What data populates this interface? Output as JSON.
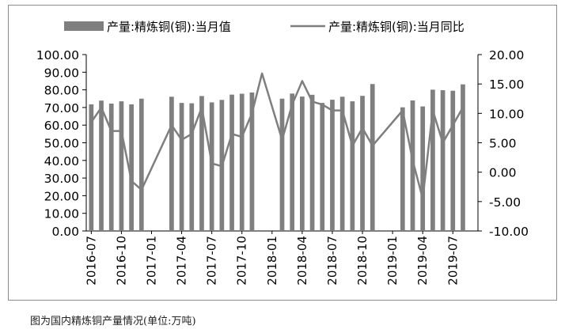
{
  "caption": "图为国内精炼铜产量情况(单位:万吨)",
  "chart_data": {
    "type": "bar+line",
    "title": "",
    "legend_position": "top",
    "colors": {
      "bar": "#7f7f7f",
      "line": "#7f7f7f",
      "axis": "#000000"
    },
    "x_tick_labels": [
      "2016-07",
      "2016-10",
      "2017-01",
      "2017-04",
      "2017-07",
      "2017-10",
      "2018-01",
      "2018-04",
      "2018-07",
      "2018-10",
      "2019-01",
      "2019-04",
      "2019-07"
    ],
    "categories": [
      "2016-07",
      "2016-08",
      "2016-09",
      "2016-10",
      "2016-11",
      "2016-12",
      "2017-01",
      "2017-02",
      "2017-03",
      "2017-04",
      "2017-05",
      "2017-06",
      "2017-07",
      "2017-08",
      "2017-09",
      "2017-10",
      "2017-11",
      "2017-12",
      "2018-01",
      "2018-02",
      "2018-03",
      "2018-04",
      "2018-05",
      "2018-06",
      "2018-07",
      "2018-08",
      "2018-09",
      "2018-10",
      "2018-11",
      "2018-12",
      "2019-01",
      "2019-02",
      "2019-03",
      "2019-04",
      "2019-05",
      "2019-06",
      "2019-07",
      "2019-08",
      "2019-09"
    ],
    "y_left": {
      "min": 0,
      "max": 100,
      "step": 10,
      "ticks": [
        "0.00",
        "10.00",
        "20.00",
        "30.00",
        "40.00",
        "50.00",
        "60.00",
        "70.00",
        "80.00",
        "90.00",
        "100.00"
      ]
    },
    "y_right": {
      "min": -10,
      "max": 20,
      "step": 5,
      "ticks": [
        "-10.00",
        "-5.00",
        "0.00",
        "5.00",
        "10.00",
        "15.00",
        "20.00"
      ]
    },
    "series": [
      {
        "name": "产量:精炼铜(铜):当月值",
        "type": "bar",
        "axis": "left",
        "values": [
          71.8,
          73.9,
          72.2,
          73.5,
          71.8,
          75.0,
          null,
          null,
          76.1,
          72.6,
          72.4,
          76.5,
          72.9,
          74.3,
          77.3,
          77.8,
          78.5,
          null,
          null,
          75.0,
          77.9,
          76.2,
          77.2,
          72.6,
          74.4,
          76.1,
          73.5,
          76.6,
          83.3,
          null,
          null,
          70.1,
          74.0,
          70.6,
          80.1,
          79.8,
          79.5,
          83.1,
          null
        ]
      },
      {
        "name": "产量:精炼铜(铜):当月同比",
        "type": "line",
        "axis": "right",
        "values": [
          8.5,
          11.0,
          7.0,
          7.0,
          -1.5,
          -3.0,
          null,
          null,
          8.0,
          5.5,
          6.5,
          11.0,
          1.5,
          1.0,
          6.5,
          6.0,
          10.0,
          16.8,
          null,
          5.5,
          11.5,
          15.5,
          12.0,
          11.5,
          10.5,
          10.5,
          4.5,
          7.5,
          4.5,
          null,
          null,
          10.5,
          2.0,
          -4.5,
          10.5,
          5.0,
          8.0,
          11.0,
          null
        ]
      }
    ]
  }
}
